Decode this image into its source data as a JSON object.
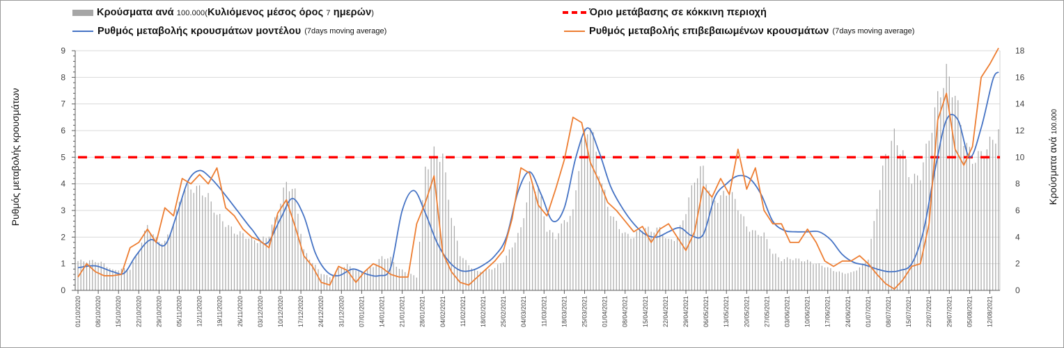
{
  "legend": {
    "bars": {
      "main": "Κρούσματα ανά",
      "small_number": "100.000",
      "paren_open": "(",
      "detail": "Κυλιόμενος μέσος όρος",
      "small_days": "7",
      "detail_end": "ημερών",
      "paren_close": ")"
    },
    "model": {
      "main": "Ρυθμός μεταβολής κρουσμάτων μοντέλου",
      "small": "(7days moving average)"
    },
    "threshold": {
      "main": "Όριο μετάβασης σε κόκκινη περιοχή"
    },
    "confirmed": {
      "main": "Ρυθμός μεταβολής επιβεβαιωμένων κρουσμάτων",
      "small": "(7days moving average)"
    }
  },
  "colors": {
    "bars": "#a6a6a6",
    "model_line": "#4472c4",
    "confirmed_line": "#ed7d31",
    "threshold": "#ff0000",
    "grid": "#d9d9d9",
    "axis_text": "#404040"
  },
  "chart_data": {
    "type": "combo (bar + line, dual axis)",
    "title": "",
    "xlabel": "",
    "ylabel_left": "Ρυθμός μεταβολής κρουσμάτων",
    "ylabel_right_main": "Κρούσματα ανά",
    "ylabel_right_small": "100.000",
    "ylim_left": [
      0,
      9
    ],
    "ylim_right": [
      0,
      18
    ],
    "yticks_left": [
      "0",
      "1",
      "2",
      "3",
      "4",
      "5",
      "6",
      "7",
      "8",
      "9"
    ],
    "yticks_right": [
      "0",
      "2",
      "4",
      "6",
      "8",
      "10",
      "12",
      "14",
      "16",
      "18"
    ],
    "grid": true,
    "x_start": "01/10/2020",
    "x_end": "15/08/2021",
    "x_ticks": [
      "01/10/2020",
      "08/10/2020",
      "15/10/2020",
      "22/10/2020",
      "29/10/2020",
      "05/11/2020",
      "12/11/2020",
      "19/11/2020",
      "26/11/2020",
      "03/12/2020",
      "10/12/2020",
      "17/12/2020",
      "24/12/2020",
      "31/12/2020",
      "07/01/2021",
      "14/01/2021",
      "21/01/2021",
      "28/01/2021",
      "04/02/2021",
      "11/02/2021",
      "18/02/2021",
      "25/02/2021",
      "04/03/2021",
      "11/03/2021",
      "18/03/2021",
      "25/03/2021",
      "01/04/2021",
      "08/04/2021",
      "15/04/2021",
      "22/04/2021",
      "29/04/2021",
      "06/05/2021",
      "13/05/2021",
      "20/05/2021",
      "27/05/2021",
      "03/06/2021",
      "10/06/2021",
      "17/06/2021",
      "24/06/2021",
      "01/07/2021",
      "08/07/2021",
      "15/07/2021",
      "22/07/2021",
      "29/07/2021",
      "05/08/2021",
      "12/08/2021"
    ],
    "threshold_left_axis": 5,
    "series": [
      {
        "name": "Κρούσματα ανά 100.000 (Κυλιόμενος μέσος όρος 7 ημερών)",
        "type": "bar",
        "axis": "right",
        "note": "daily values sampled at day offsets from 01/10/2020",
        "day": [
          0,
          3,
          6,
          9,
          12,
          15,
          18,
          21,
          24,
          27,
          30,
          33,
          36,
          39,
          42,
          45,
          48,
          51,
          54,
          57,
          60,
          63,
          66,
          69,
          72,
          75,
          78,
          81,
          84,
          87,
          90,
          93,
          96,
          99,
          102,
          105,
          108,
          111,
          114,
          117,
          120,
          123,
          126,
          129,
          132,
          135,
          138,
          141,
          144,
          147,
          150,
          153,
          156,
          159,
          162,
          165,
          168,
          171,
          174,
          177,
          180,
          183,
          186,
          189,
          192,
          195,
          198,
          201,
          204,
          207,
          210,
          213,
          216,
          219,
          222,
          225,
          228,
          231,
          234,
          237,
          240,
          243,
          246,
          249,
          252,
          255,
          258,
          261,
          264,
          267,
          270,
          273,
          276,
          279,
          282,
          285,
          288,
          291,
          294,
          297,
          300,
          303,
          306,
          309,
          312,
          315,
          318
        ],
        "values": [
          2.2,
          2.2,
          2.2,
          2.0,
          1.5,
          1.6,
          1.6,
          3.0,
          4.9,
          3.8,
          3.6,
          5.0,
          7.4,
          7.7,
          7.6,
          7.0,
          5.7,
          5.0,
          4.4,
          4.2,
          3.8,
          3.7,
          4.2,
          5.9,
          8.1,
          7.3,
          3.0,
          2.1,
          1.3,
          1.0,
          1.6,
          1.9,
          1.5,
          1.4,
          1.8,
          2.5,
          2.4,
          1.6,
          1.3,
          1.0,
          9.2,
          10.3,
          10.0,
          5.6,
          2.7,
          1.9,
          1.4,
          1.5,
          1.7,
          2.2,
          3.3,
          4.6,
          7.8,
          7.8,
          4.6,
          4.0,
          5.2,
          5.8,
          11.2,
          12.6,
          9.0,
          6.3,
          5.0,
          4.2,
          4.0,
          4.7,
          4.5,
          4.6,
          3.7,
          4.0,
          6.0,
          8.4,
          9.2,
          6.7,
          7.0,
          7.5,
          6.3,
          4.8,
          4.3,
          4.2,
          2.8,
          2.3,
          2.4,
          2.3,
          2.2,
          2.0,
          1.8,
          1.5,
          1.3,
          1.3,
          1.7,
          2.4,
          6.4,
          10.2,
          11.6,
          10.2,
          8.2,
          8.7,
          11.4,
          14.4,
          16.3,
          14.7,
          11.4,
          9.8,
          10.2,
          11.0,
          11.9
        ],
        "end_value": 12.1
      },
      {
        "name": "Ρυθμός μεταβολής κρουσμάτων μοντέλου (7days moving average)",
        "type": "line",
        "axis": "left",
        "day": [
          0,
          6,
          12,
          16,
          20,
          25,
          30,
          34,
          38,
          42,
          46,
          50,
          55,
          60,
          65,
          70,
          74,
          78,
          82,
          86,
          90,
          95,
          100,
          104,
          108,
          112,
          116,
          120,
          124,
          128,
          132,
          136,
          140,
          144,
          148,
          152,
          156,
          160,
          164,
          168,
          172,
          176,
          180,
          184,
          188,
          192,
          196,
          200,
          204,
          208,
          212,
          216,
          220,
          224,
          228,
          232,
          236,
          240,
          244,
          248,
          252,
          256,
          260,
          264,
          268,
          272,
          276,
          280,
          284,
          288,
          292,
          296,
          300,
          304,
          308,
          312,
          316,
          318
        ],
        "values": [
          0.85,
          0.92,
          0.7,
          0.65,
          1.3,
          1.9,
          1.7,
          2.8,
          4.1,
          4.5,
          4.2,
          3.7,
          3.0,
          2.3,
          1.75,
          2.7,
          3.45,
          2.8,
          1.4,
          0.7,
          0.55,
          0.8,
          0.6,
          0.55,
          0.85,
          3.0,
          3.75,
          2.9,
          1.8,
          1.1,
          0.75,
          0.75,
          0.95,
          1.3,
          2.0,
          3.7,
          4.45,
          3.6,
          2.6,
          3.1,
          5.0,
          6.1,
          5.2,
          3.9,
          3.1,
          2.5,
          2.1,
          2.0,
          2.2,
          2.35,
          2.05,
          2.1,
          3.5,
          4.0,
          4.3,
          4.2,
          3.6,
          2.6,
          2.25,
          2.2,
          2.2,
          2.2,
          1.9,
          1.35,
          1.05,
          0.95,
          0.8,
          0.7,
          0.75,
          1.0,
          2.2,
          4.5,
          6.4,
          6.4,
          5.0,
          6.1,
          7.9,
          8.2,
          8.3,
          7.3,
          6.0,
          5.8,
          6.0
        ]
      },
      {
        "name": "Ρυθμός μεταβολής επιβεβαιωμένων κρουσμάτων (7days moving average)",
        "type": "line",
        "axis": "left",
        "day": [
          0,
          3,
          6,
          9,
          12,
          15,
          18,
          21,
          24,
          27,
          30,
          33,
          36,
          39,
          42,
          45,
          48,
          51,
          54,
          57,
          60,
          63,
          66,
          69,
          72,
          75,
          78,
          81,
          84,
          87,
          90,
          93,
          96,
          99,
          102,
          105,
          108,
          111,
          114,
          117,
          120,
          123,
          126,
          129,
          132,
          135,
          138,
          141,
          144,
          147,
          150,
          153,
          156,
          159,
          162,
          165,
          168,
          171,
          174,
          177,
          180,
          183,
          186,
          189,
          192,
          195,
          198,
          201,
          204,
          207,
          210,
          213,
          216,
          219,
          222,
          225,
          228,
          231,
          234,
          237,
          240,
          243,
          246,
          249,
          252,
          255,
          258,
          261,
          264,
          267,
          270,
          273,
          276,
          279,
          282,
          285,
          288,
          291,
          294,
          297,
          300,
          303,
          306,
          309,
          312,
          315,
          318
        ],
        "values": [
          0.5,
          1.0,
          0.7,
          0.55,
          0.55,
          0.6,
          1.6,
          1.8,
          2.3,
          1.8,
          3.1,
          2.8,
          4.2,
          4.0,
          4.35,
          4.0,
          4.6,
          3.1,
          2.8,
          2.3,
          2.0,
          1.85,
          1.6,
          2.9,
          3.4,
          2.4,
          1.3,
          0.9,
          0.3,
          0.2,
          0.9,
          0.75,
          0.3,
          0.7,
          1.0,
          0.85,
          0.6,
          0.5,
          0.5,
          2.5,
          3.3,
          4.3,
          1.4,
          0.7,
          0.3,
          0.2,
          0.5,
          0.8,
          1.1,
          1.5,
          2.7,
          4.6,
          4.4,
          3.2,
          2.8,
          3.8,
          4.9,
          6.5,
          6.3,
          4.8,
          4.1,
          3.3,
          3.0,
          2.6,
          2.2,
          2.4,
          1.8,
          2.3,
          2.5,
          2.0,
          1.5,
          2.2,
          3.9,
          3.5,
          4.2,
          3.6,
          5.3,
          3.8,
          4.6,
          3.0,
          2.5,
          2.5,
          1.8,
          1.8,
          2.3,
          1.8,
          1.1,
          0.9,
          1.1,
          1.1,
          1.3,
          1.0,
          0.6,
          0.25,
          0.05,
          0.4,
          0.9,
          1.0,
          2.5,
          6.4,
          7.4,
          5.3,
          4.7,
          5.4,
          8.0,
          8.5,
          9.1
        ]
      }
    ]
  }
}
